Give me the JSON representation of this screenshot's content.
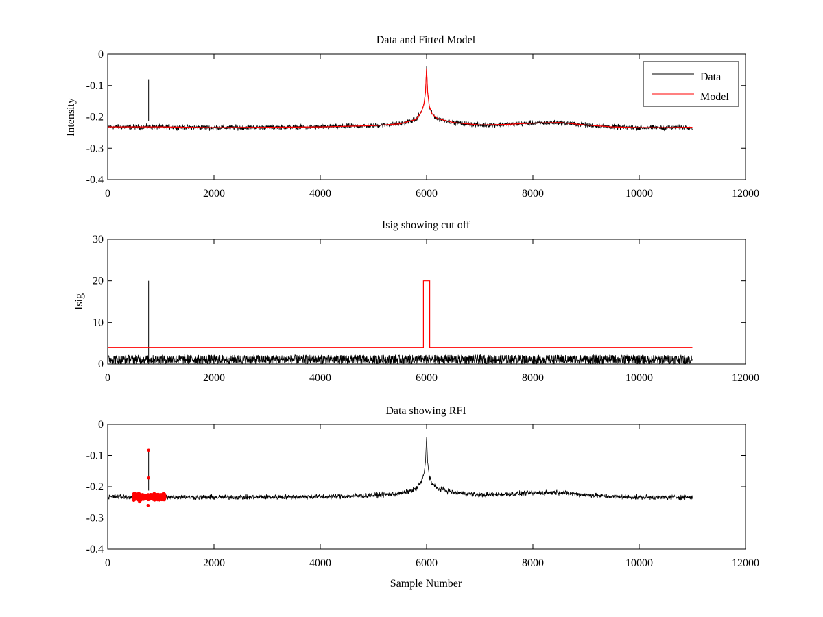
{
  "figure": {
    "background": "#ffffff"
  },
  "chart_data": [
    {
      "type": "line",
      "title": "Data and Fitted Model",
      "xlabel": "",
      "ylabel": "Intensity",
      "xlim": [
        0,
        12000
      ],
      "ylim": [
        -0.4,
        0
      ],
      "xticks": [
        0,
        2000,
        4000,
        6000,
        8000,
        10000,
        12000
      ],
      "yticks": [
        0,
        -0.1,
        -0.2,
        -0.3,
        -0.4
      ],
      "xtick_labels": [
        "0",
        "2000",
        "4000",
        "6000",
        "8000",
        "10000",
        "12000"
      ],
      "ytick_labels": [
        "0",
        "-0.1",
        "-0.2",
        "-0.3",
        "-0.4"
      ],
      "legend": {
        "placement": "top-right",
        "entries": [
          "Data",
          "Model"
        ]
      },
      "series": [
        {
          "name": "Data",
          "color": "#000000",
          "style": "noisy-line",
          "noise_amplitude": 0.012,
          "x": [
            0,
            1000,
            2000,
            3000,
            4000,
            5000,
            5500,
            5800,
            5900,
            5950,
            5980,
            6000,
            6020,
            6050,
            6100,
            6200,
            6500,
            7000,
            7500,
            8000,
            8500,
            9000,
            9500,
            10000,
            10500,
            11000
          ],
          "y": [
            -0.232,
            -0.232,
            -0.234,
            -0.233,
            -0.232,
            -0.228,
            -0.222,
            -0.208,
            -0.185,
            -0.16,
            -0.12,
            -0.04,
            -0.12,
            -0.165,
            -0.19,
            -0.205,
            -0.218,
            -0.226,
            -0.224,
            -0.22,
            -0.218,
            -0.226,
            -0.232,
            -0.234,
            -0.234,
            -0.233
          ],
          "spikes": [
            {
              "x": 770,
              "y": -0.08
            }
          ]
        },
        {
          "name": "Model",
          "color": "#ff0000",
          "style": "line",
          "x": [
            0,
            1000,
            2000,
            3000,
            4000,
            5000,
            5500,
            5800,
            5900,
            5950,
            5980,
            6000,
            6020,
            6050,
            6100,
            6200,
            6500,
            7000,
            7500,
            8000,
            8500,
            9000,
            9500,
            10000,
            10500,
            11000
          ],
          "y": [
            -0.232,
            -0.232,
            -0.234,
            -0.233,
            -0.232,
            -0.228,
            -0.222,
            -0.208,
            -0.185,
            -0.16,
            -0.12,
            -0.045,
            -0.12,
            -0.165,
            -0.19,
            -0.205,
            -0.218,
            -0.226,
            -0.224,
            -0.22,
            -0.218,
            -0.226,
            -0.232,
            -0.234,
            -0.234,
            -0.233
          ]
        }
      ]
    },
    {
      "type": "line",
      "title": "Isig showing cut off",
      "xlabel": "",
      "ylabel": "Isig",
      "xlim": [
        0,
        12000
      ],
      "ylim": [
        0,
        30
      ],
      "xticks": [
        0,
        2000,
        4000,
        6000,
        8000,
        10000,
        12000
      ],
      "yticks": [
        0,
        10,
        20,
        30
      ],
      "xtick_labels": [
        "0",
        "2000",
        "4000",
        "6000",
        "8000",
        "10000",
        "12000"
      ],
      "ytick_labels": [
        "0",
        "10",
        "20",
        "30"
      ],
      "series": [
        {
          "name": "Isig",
          "color": "#000000",
          "style": "noise-band",
          "x_range": [
            0,
            11000
          ],
          "band": [
            0,
            2.2
          ],
          "spikes": [
            {
              "x": 770,
              "y": 20
            }
          ]
        },
        {
          "name": "Cut off",
          "color": "#ff0000",
          "style": "step",
          "x": [
            0,
            5940,
            5940,
            6060,
            6060,
            11000
          ],
          "y": [
            4,
            4,
            20,
            20,
            4,
            4
          ]
        }
      ]
    },
    {
      "type": "line",
      "title": "Data showing RFI",
      "xlabel": "Sample Number",
      "ylabel": "",
      "xlim": [
        0,
        12000
      ],
      "ylim": [
        -0.4,
        0
      ],
      "xticks": [
        0,
        2000,
        4000,
        6000,
        8000,
        10000,
        12000
      ],
      "yticks": [
        0,
        -0.1,
        -0.2,
        -0.3,
        -0.4
      ],
      "xtick_labels": [
        "0",
        "2000",
        "4000",
        "6000",
        "8000",
        "10000",
        "12000"
      ],
      "ytick_labels": [
        "0",
        "-0.1",
        "-0.2",
        "-0.3",
        "-0.4"
      ],
      "series": [
        {
          "name": "Data",
          "color": "#000000",
          "style": "noisy-line",
          "noise_amplitude": 0.012,
          "x": [
            0,
            1000,
            2000,
            3000,
            4000,
            5000,
            5500,
            5800,
            5900,
            5950,
            5980,
            6000,
            6020,
            6050,
            6100,
            6200,
            6500,
            7000,
            7500,
            8000,
            8500,
            9000,
            9500,
            10000,
            10500,
            11000
          ],
          "y": [
            -0.232,
            -0.232,
            -0.234,
            -0.233,
            -0.232,
            -0.228,
            -0.222,
            -0.208,
            -0.185,
            -0.16,
            -0.12,
            -0.04,
            -0.12,
            -0.165,
            -0.19,
            -0.205,
            -0.218,
            -0.226,
            -0.224,
            -0.22,
            -0.218,
            -0.226,
            -0.232,
            -0.234,
            -0.234,
            -0.233
          ],
          "spikes": [
            {
              "x": 770,
              "y": -0.08
            }
          ]
        },
        {
          "name": "RFI",
          "color": "#ff0000",
          "style": "markers",
          "x_range": [
            480,
            1080
          ],
          "y_center": -0.232,
          "y_spread": 0.03,
          "points": [
            {
              "x": 770,
              "y": -0.083
            },
            {
              "x": 770,
              "y": -0.172
            },
            {
              "x": 760,
              "y": -0.26
            },
            {
              "x": 600,
              "y": -0.248
            }
          ]
        }
      ]
    }
  ]
}
